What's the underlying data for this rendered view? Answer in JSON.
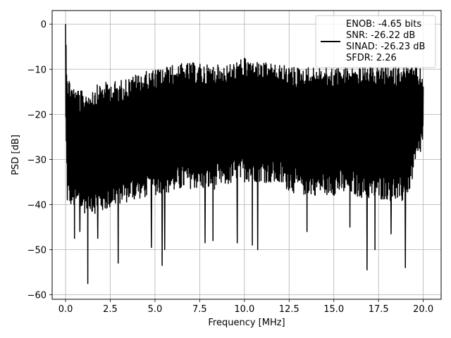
{
  "chart_data": {
    "type": "line",
    "xlabel": "Frequency [MHz]",
    "ylabel": "PSD [dB]",
    "xlim": [
      -0.75,
      21.0
    ],
    "ylim": [
      -61.0,
      3.0
    ],
    "x_ticks": [
      0.0,
      2.5,
      5.0,
      7.5,
      10.0,
      12.5,
      15.0,
      17.5,
      20.0
    ],
    "x_tick_labels": [
      "0.0",
      "2.5",
      "5.0",
      "7.5",
      "10.0",
      "12.5",
      "15.0",
      "17.5",
      "20.0"
    ],
    "y_ticks": [
      0,
      -10,
      -20,
      -30,
      -40,
      -50,
      -60
    ],
    "y_tick_labels": [
      "0",
      "−10",
      "−20",
      "−30",
      "−40",
      "−50",
      "−60"
    ],
    "grid": true,
    "legend_position": "top-right",
    "series": [
      {
        "legend_lines": [
          "ENOB: -4.65 bits",
          "SNR: -26.22 dB",
          "SINAD: -26.23 dB",
          "SFDR: 2.26"
        ],
        "color": "#000000",
        "x_range": [
          0.0,
          20.0
        ],
        "peak": {
          "x": 0.0,
          "y": 0.0
        },
        "envelope": {
          "x": [
            0.0,
            0.1,
            0.5,
            1.0,
            2.0,
            3.0,
            4.0,
            5.0,
            6.0,
            7.0,
            8.0,
            9.0,
            10.0,
            11.0,
            12.0,
            13.0,
            14.0,
            15.0,
            16.0,
            17.0,
            18.0,
            19.0,
            20.0
          ],
          "upper": [
            0.0,
            -11.0,
            -14.0,
            -15.0,
            -13.0,
            -12.5,
            -11.0,
            -10.0,
            -9.0,
            -8.5,
            -9.0,
            -9.0,
            -7.5,
            -8.5,
            -9.0,
            -9.5,
            -9.5,
            -9.5,
            -9.5,
            -9.5,
            -9.5,
            -9.0,
            -10.0
          ],
          "lower": [
            -22.0,
            -40.0,
            -41.0,
            -42.0,
            -42.0,
            -40.0,
            -39.0,
            -38.0,
            -37.5,
            -36.5,
            -37.0,
            -36.0,
            -35.0,
            -35.0,
            -36.0,
            -38.0,
            -38.0,
            -38.0,
            -38.0,
            -39.0,
            -39.0,
            -40.0,
            -27.0
          ]
        },
        "deep_dips": [
          {
            "x": 1.25,
            "y": -57.5
          },
          {
            "x": 2.95,
            "y": -53.0
          },
          {
            "x": 5.4,
            "y": -53.5
          },
          {
            "x": 5.55,
            "y": -50.0
          },
          {
            "x": 4.8,
            "y": -49.5
          },
          {
            "x": 7.8,
            "y": -48.5
          },
          {
            "x": 8.25,
            "y": -48.0
          },
          {
            "x": 9.6,
            "y": -48.5
          },
          {
            "x": 10.45,
            "y": -49.0
          },
          {
            "x": 10.75,
            "y": -50.0
          },
          {
            "x": 13.5,
            "y": -46.0
          },
          {
            "x": 16.85,
            "y": -54.5
          },
          {
            "x": 17.3,
            "y": -50.0
          },
          {
            "x": 19.0,
            "y": -54.0
          },
          {
            "x": 0.5,
            "y": -47.5
          },
          {
            "x": 0.8,
            "y": -46.0
          },
          {
            "x": 1.8,
            "y": -47.5
          },
          {
            "x": 15.9,
            "y": -45.0
          },
          {
            "x": 18.2,
            "y": -46.5
          }
        ]
      }
    ]
  }
}
